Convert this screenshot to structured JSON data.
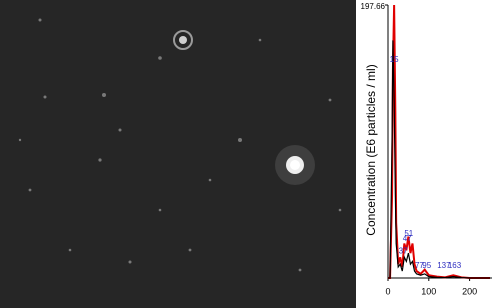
{
  "chart_data": {
    "type": "line",
    "ylabel": "Concentration (E6 particles / ml)",
    "x": [
      0,
      5,
      10,
      12,
      15,
      18,
      20,
      25,
      30,
      35,
      40,
      45,
      50,
      55,
      60,
      65,
      70,
      80,
      90,
      100,
      120,
      140,
      160,
      180,
      200,
      250
    ],
    "series": [
      {
        "color": "#e00000",
        "values": [
          0,
          0,
          60,
          150,
          197.66,
          120,
          40,
          10,
          15,
          8,
          25,
          20,
          30,
          18,
          25,
          10,
          5,
          3,
          6,
          2,
          1,
          0.5,
          2,
          0.5,
          0,
          0
        ]
      },
      {
        "color": "#000000",
        "values": [
          0,
          0,
          100,
          172,
          130,
          60,
          25,
          8,
          10,
          5,
          15,
          12,
          18,
          10,
          12,
          5,
          3,
          2,
          3,
          1,
          0.5,
          0.3,
          1,
          0.3,
          0,
          0
        ]
      }
    ],
    "peaks": [
      15,
      37,
      47,
      51,
      77,
      95,
      137,
      163
    ],
    "peak_color": "#3030c0",
    "xlim": [
      0,
      250
    ],
    "xticks": [
      0,
      100,
      200
    ],
    "ylim": [
      0,
      197.66
    ],
    "yticks": [
      197.66
    ]
  }
}
